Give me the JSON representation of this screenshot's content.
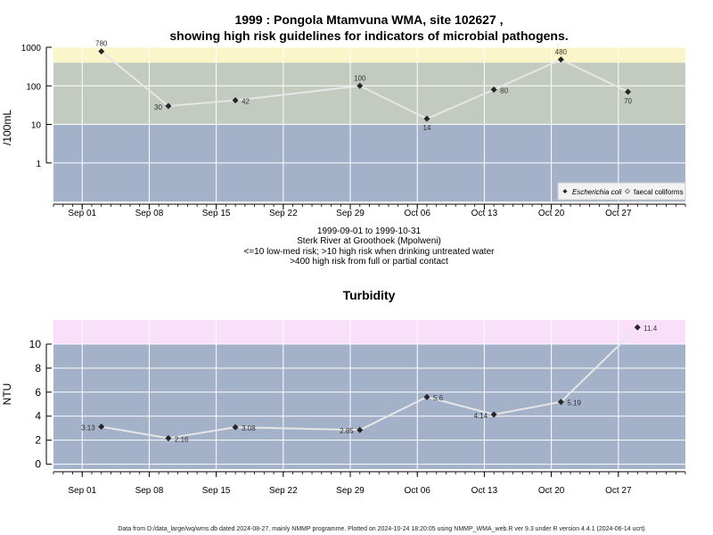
{
  "header": {
    "title_line1": "1999 : Pongola Mtamvuna WMA, site 102627 ,",
    "title_line2": "showing high risk guidelines for indicators of microbial pathogens."
  },
  "footer": {
    "text": "Data from D:/data_large/wq/wms.db dated 2024-08-27, mainly NMMP programme. Plotted on 2024-10-24 18:20:05 using NMMP_WMA_web.R ver 9.3 under R version 4.4.1 (2024-06-14 ucrt)"
  },
  "colors": {
    "panel_blue": "#a3b1c9",
    "medium_risk": "#c3cac0",
    "high_risk_yellow": "#fbf6c9",
    "high_turbidity_pink": "#f9dff9",
    "grid": "#ffffff",
    "line": "#e6e6e6",
    "marker": "#262626"
  },
  "chart_data": [
    {
      "type": "line",
      "title": "",
      "ylabel": "/100mL",
      "y_scale": "log",
      "ylim": [
        0.1,
        1000
      ],
      "y_ticks": [
        "1000",
        "100",
        "10",
        "1"
      ],
      "x_ticks": [
        "Sep 01",
        "Sep 08",
        "Sep 15",
        "Sep 22",
        "Sep 29",
        "Oct 06",
        "Oct 13",
        "Oct 20",
        "Oct 27"
      ],
      "xlim": [
        "1999-08-29",
        "1999-11-03"
      ],
      "bands": [
        {
          "from": 0.1,
          "to": 10
        },
        {
          "from": 10,
          "to": 400
        },
        {
          "from": 400,
          "to": 1000
        }
      ],
      "subtitle": [
        "1999-09-01 to 1999-10-31",
        "Sterk River at Groothoek (Mpolweni)",
        "<=10 low-med risk; >10 high risk when drinking untreated water",
        ">400 high risk from full or partial contact"
      ],
      "legend": {
        "position": "bottom-right",
        "entries": [
          "Escherichia coli",
          "faecal coliforms"
        ]
      },
      "series": [
        {
          "name": "Escherichia coli",
          "x": [
            "1999-09-03",
            "1999-09-10",
            "1999-09-17",
            "1999-09-30",
            "1999-10-07",
            "1999-10-14",
            "1999-10-21",
            "1999-10-28"
          ],
          "values": [
            780,
            30,
            42,
            100,
            14,
            80,
            480,
            70
          ],
          "labels": [
            "780",
            "30",
            "42",
            "100",
            "14",
            "80",
            "480",
            "70"
          ]
        }
      ]
    },
    {
      "type": "line",
      "title": "Turbidity",
      "ylabel": "NTU",
      "ylim": [
        -0.4,
        12
      ],
      "y_ticks": [
        "10",
        "8",
        "6",
        "4",
        "2",
        "0"
      ],
      "x_ticks": [
        "Sep 01",
        "Sep 08",
        "Sep 15",
        "Sep 22",
        "Sep 29",
        "Oct 06",
        "Oct 13",
        "Oct 20",
        "Oct 27"
      ],
      "xlim": [
        "1999-08-29",
        "1999-11-03"
      ],
      "bands": [
        {
          "from": -0.4,
          "to": 10
        },
        {
          "from": 10,
          "to": 12
        }
      ],
      "series": [
        {
          "x": [
            "1999-09-03",
            "1999-09-10",
            "1999-09-17",
            "1999-09-30",
            "1999-10-07",
            "1999-10-14",
            "1999-10-21",
            "1999-10-29"
          ],
          "values": [
            3.13,
            2.16,
            3.08,
            2.85,
            5.6,
            4.14,
            5.19,
            11.4
          ],
          "labels": [
            "3.13",
            "2.16",
            "3.08",
            "2.85",
            "5.6",
            "4.14",
            "5.19",
            "11.4"
          ]
        }
      ]
    }
  ]
}
